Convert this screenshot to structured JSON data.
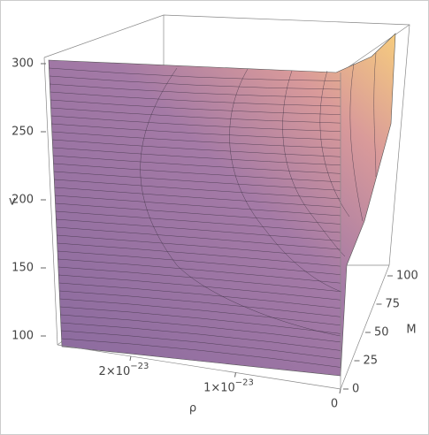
{
  "chart_data": {
    "type": "surface3d",
    "xlabel": "ρ",
    "ylabel": "v",
    "zlabel": "M",
    "xlim": [
      0,
      2.7e-23
    ],
    "xticks": [
      0,
      {
        "value": 1e-23,
        "label": "1×10",
        "exponent": "−23"
      },
      {
        "value": 2e-23,
        "label": "2×10",
        "exponent": "−23"
      }
    ],
    "ylim": [
      100,
      300
    ],
    "yticks": [
      100,
      150,
      200,
      250,
      300
    ],
    "zlim": [
      0,
      100
    ],
    "zticks": [
      0,
      25,
      50,
      75,
      100
    ]
  }
}
